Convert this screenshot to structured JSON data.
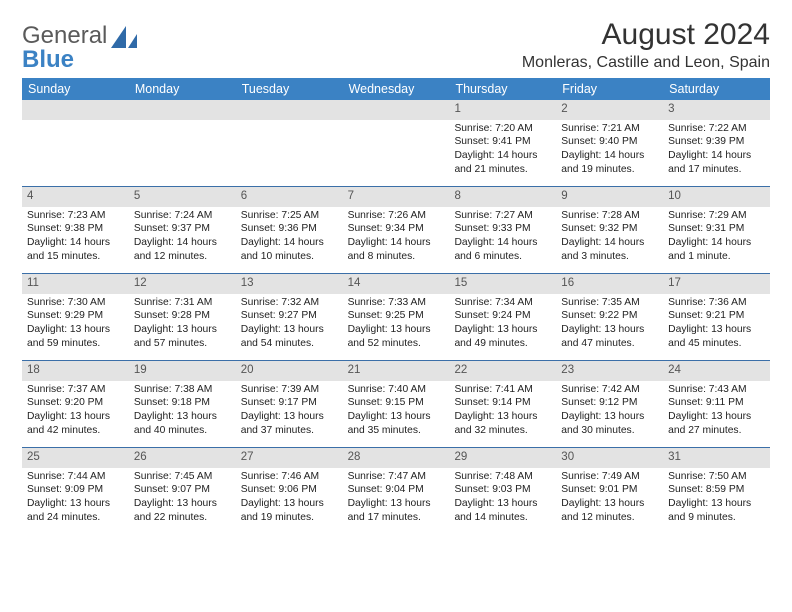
{
  "brand": {
    "part1": "General",
    "part2": "Blue"
  },
  "title": "August 2024",
  "location": "Monleras, Castille and Leon, Spain",
  "colors": {
    "header_bg": "#3b82c4",
    "header_text": "#ffffff",
    "daynum_bg": "#e3e3e3",
    "rule": "#3b6fa8",
    "body_text": "#222222",
    "logo_gray": "#5a5a5a",
    "logo_blue": "#3b82c4"
  },
  "dow": [
    "Sunday",
    "Monday",
    "Tuesday",
    "Wednesday",
    "Thursday",
    "Friday",
    "Saturday"
  ],
  "weeks": [
    [
      {
        "n": "",
        "lines": []
      },
      {
        "n": "",
        "lines": []
      },
      {
        "n": "",
        "lines": []
      },
      {
        "n": "",
        "lines": []
      },
      {
        "n": "1",
        "lines": [
          "Sunrise: 7:20 AM",
          "Sunset: 9:41 PM",
          "Daylight: 14 hours",
          "and 21 minutes."
        ]
      },
      {
        "n": "2",
        "lines": [
          "Sunrise: 7:21 AM",
          "Sunset: 9:40 PM",
          "Daylight: 14 hours",
          "and 19 minutes."
        ]
      },
      {
        "n": "3",
        "lines": [
          "Sunrise: 7:22 AM",
          "Sunset: 9:39 PM",
          "Daylight: 14 hours",
          "and 17 minutes."
        ]
      }
    ],
    [
      {
        "n": "4",
        "lines": [
          "Sunrise: 7:23 AM",
          "Sunset: 9:38 PM",
          "Daylight: 14 hours",
          "and 15 minutes."
        ]
      },
      {
        "n": "5",
        "lines": [
          "Sunrise: 7:24 AM",
          "Sunset: 9:37 PM",
          "Daylight: 14 hours",
          "and 12 minutes."
        ]
      },
      {
        "n": "6",
        "lines": [
          "Sunrise: 7:25 AM",
          "Sunset: 9:36 PM",
          "Daylight: 14 hours",
          "and 10 minutes."
        ]
      },
      {
        "n": "7",
        "lines": [
          "Sunrise: 7:26 AM",
          "Sunset: 9:34 PM",
          "Daylight: 14 hours",
          "and 8 minutes."
        ]
      },
      {
        "n": "8",
        "lines": [
          "Sunrise: 7:27 AM",
          "Sunset: 9:33 PM",
          "Daylight: 14 hours",
          "and 6 minutes."
        ]
      },
      {
        "n": "9",
        "lines": [
          "Sunrise: 7:28 AM",
          "Sunset: 9:32 PM",
          "Daylight: 14 hours",
          "and 3 minutes."
        ]
      },
      {
        "n": "10",
        "lines": [
          "Sunrise: 7:29 AM",
          "Sunset: 9:31 PM",
          "Daylight: 14 hours",
          "and 1 minute."
        ]
      }
    ],
    [
      {
        "n": "11",
        "lines": [
          "Sunrise: 7:30 AM",
          "Sunset: 9:29 PM",
          "Daylight: 13 hours",
          "and 59 minutes."
        ]
      },
      {
        "n": "12",
        "lines": [
          "Sunrise: 7:31 AM",
          "Sunset: 9:28 PM",
          "Daylight: 13 hours",
          "and 57 minutes."
        ]
      },
      {
        "n": "13",
        "lines": [
          "Sunrise: 7:32 AM",
          "Sunset: 9:27 PM",
          "Daylight: 13 hours",
          "and 54 minutes."
        ]
      },
      {
        "n": "14",
        "lines": [
          "Sunrise: 7:33 AM",
          "Sunset: 9:25 PM",
          "Daylight: 13 hours",
          "and 52 minutes."
        ]
      },
      {
        "n": "15",
        "lines": [
          "Sunrise: 7:34 AM",
          "Sunset: 9:24 PM",
          "Daylight: 13 hours",
          "and 49 minutes."
        ]
      },
      {
        "n": "16",
        "lines": [
          "Sunrise: 7:35 AM",
          "Sunset: 9:22 PM",
          "Daylight: 13 hours",
          "and 47 minutes."
        ]
      },
      {
        "n": "17",
        "lines": [
          "Sunrise: 7:36 AM",
          "Sunset: 9:21 PM",
          "Daylight: 13 hours",
          "and 45 minutes."
        ]
      }
    ],
    [
      {
        "n": "18",
        "lines": [
          "Sunrise: 7:37 AM",
          "Sunset: 9:20 PM",
          "Daylight: 13 hours",
          "and 42 minutes."
        ]
      },
      {
        "n": "19",
        "lines": [
          "Sunrise: 7:38 AM",
          "Sunset: 9:18 PM",
          "Daylight: 13 hours",
          "and 40 minutes."
        ]
      },
      {
        "n": "20",
        "lines": [
          "Sunrise: 7:39 AM",
          "Sunset: 9:17 PM",
          "Daylight: 13 hours",
          "and 37 minutes."
        ]
      },
      {
        "n": "21",
        "lines": [
          "Sunrise: 7:40 AM",
          "Sunset: 9:15 PM",
          "Daylight: 13 hours",
          "and 35 minutes."
        ]
      },
      {
        "n": "22",
        "lines": [
          "Sunrise: 7:41 AM",
          "Sunset: 9:14 PM",
          "Daylight: 13 hours",
          "and 32 minutes."
        ]
      },
      {
        "n": "23",
        "lines": [
          "Sunrise: 7:42 AM",
          "Sunset: 9:12 PM",
          "Daylight: 13 hours",
          "and 30 minutes."
        ]
      },
      {
        "n": "24",
        "lines": [
          "Sunrise: 7:43 AM",
          "Sunset: 9:11 PM",
          "Daylight: 13 hours",
          "and 27 minutes."
        ]
      }
    ],
    [
      {
        "n": "25",
        "lines": [
          "Sunrise: 7:44 AM",
          "Sunset: 9:09 PM",
          "Daylight: 13 hours",
          "and 24 minutes."
        ]
      },
      {
        "n": "26",
        "lines": [
          "Sunrise: 7:45 AM",
          "Sunset: 9:07 PM",
          "Daylight: 13 hours",
          "and 22 minutes."
        ]
      },
      {
        "n": "27",
        "lines": [
          "Sunrise: 7:46 AM",
          "Sunset: 9:06 PM",
          "Daylight: 13 hours",
          "and 19 minutes."
        ]
      },
      {
        "n": "28",
        "lines": [
          "Sunrise: 7:47 AM",
          "Sunset: 9:04 PM",
          "Daylight: 13 hours",
          "and 17 minutes."
        ]
      },
      {
        "n": "29",
        "lines": [
          "Sunrise: 7:48 AM",
          "Sunset: 9:03 PM",
          "Daylight: 13 hours",
          "and 14 minutes."
        ]
      },
      {
        "n": "30",
        "lines": [
          "Sunrise: 7:49 AM",
          "Sunset: 9:01 PM",
          "Daylight: 13 hours",
          "and 12 minutes."
        ]
      },
      {
        "n": "31",
        "lines": [
          "Sunrise: 7:50 AM",
          "Sunset: 8:59 PM",
          "Daylight: 13 hours",
          "and 9 minutes."
        ]
      }
    ]
  ]
}
